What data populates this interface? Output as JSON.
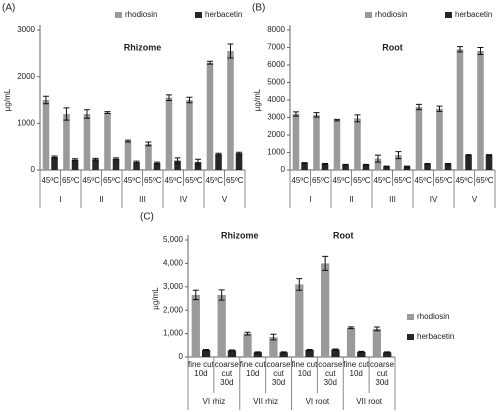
{
  "chart_data": [
    {
      "type": "bar",
      "panel": "(A)",
      "title": "Rhizome",
      "y_label": "µg/mL",
      "legend": "top",
      "categories": [
        "45ºC",
        "65ºC",
        "45ºC",
        "65ºC",
        "45ºC",
        "65ºC",
        "45ºC",
        "65ºC",
        "45ºC",
        "65ºC"
      ],
      "groups": [
        "I",
        "II",
        "III",
        "IV",
        "V"
      ],
      "ylim": [
        0,
        3000
      ],
      "yticks": [
        0,
        1000,
        2000,
        3000
      ],
      "series": [
        {
          "name": "rhodiosin",
          "color": "#9a9a9a",
          "values": [
            1500,
            1200,
            1200,
            1230,
            620,
            560,
            1550,
            1500,
            2300,
            2550
          ],
          "errors": [
            80,
            130,
            90,
            20,
            20,
            40,
            60,
            60,
            30,
            150
          ]
        },
        {
          "name": "herbacetin",
          "color": "#262626",
          "values": [
            280,
            220,
            230,
            240,
            170,
            150,
            200,
            170,
            340,
            360
          ],
          "errors": [
            20,
            20,
            20,
            20,
            20,
            20,
            60,
            60,
            20,
            20
          ]
        }
      ]
    },
    {
      "type": "bar",
      "panel": "(B)",
      "title": "Root",
      "y_label": "µg/mL",
      "legend": "top",
      "categories": [
        "45ºC",
        "65ºC",
        "45ºC",
        "65ºC",
        "45ºC",
        "65ºC",
        "45ºC",
        "65ºC",
        "45ºC",
        "65ºC"
      ],
      "groups": [
        "I",
        "II",
        "III",
        "IV",
        "V"
      ],
      "ylim": [
        0,
        8000
      ],
      "yticks": [
        0,
        1000,
        2000,
        3000,
        4000,
        5000,
        6000,
        7000,
        8000
      ],
      "series": [
        {
          "name": "rhodiosin",
          "color": "#9a9a9a",
          "values": [
            3200,
            3150,
            2850,
            2950,
            650,
            850,
            3600,
            3500,
            6900,
            6800
          ],
          "errors": [
            120,
            130,
            40,
            200,
            200,
            200,
            150,
            150,
            150,
            200
          ]
        },
        {
          "name": "herbacetin",
          "color": "#262626",
          "values": [
            400,
            350,
            300,
            300,
            200,
            200,
            350,
            350,
            850,
            850
          ],
          "errors": [
            20,
            20,
            20,
            20,
            20,
            20,
            20,
            20,
            30,
            30
          ]
        }
      ]
    },
    {
      "type": "bar",
      "panel": "(C)",
      "y_label": "µg/mL",
      "legend": "right",
      "annotations": [
        "Rhizome",
        "Root"
      ],
      "categories": [
        [
          "fine cut",
          "10d"
        ],
        [
          "coarse",
          "cut",
          "30d"
        ],
        [
          "fine cut",
          "10d"
        ],
        [
          "coarse",
          "cut",
          "30d"
        ],
        [
          "fine cut",
          "10d"
        ],
        [
          "coarse",
          "cut",
          "30d"
        ],
        [
          "fine cut",
          "10d"
        ],
        [
          "coarse",
          "cut",
          "30d"
        ]
      ],
      "groups": [
        "VI rhiz",
        "VII rhiz",
        "VI root",
        "VII root"
      ],
      "ylim": [
        0,
        5000
      ],
      "yticks": [
        0,
        {
          "value": 1000,
          "label": "1,000"
        },
        {
          "value": 2000,
          "label": "2,000"
        },
        {
          "value": 3000,
          "label": "3,000"
        },
        {
          "value": 4000,
          "label": "4,000"
        },
        {
          "value": 5000,
          "label": "5,000"
        }
      ],
      "series": [
        {
          "name": "rhodiosin",
          "color": "#9a9a9a",
          "values": [
            2650,
            2650,
            1000,
            850,
            3100,
            4000,
            1250,
            1200
          ],
          "errors": [
            200,
            220,
            60,
            120,
            250,
            300,
            40,
            80
          ]
        },
        {
          "name": "herbacetin",
          "color": "#262626",
          "values": [
            300,
            280,
            200,
            200,
            300,
            320,
            220,
            200
          ],
          "errors": [
            20,
            20,
            20,
            20,
            20,
            20,
            20,
            20
          ]
        }
      ]
    }
  ]
}
